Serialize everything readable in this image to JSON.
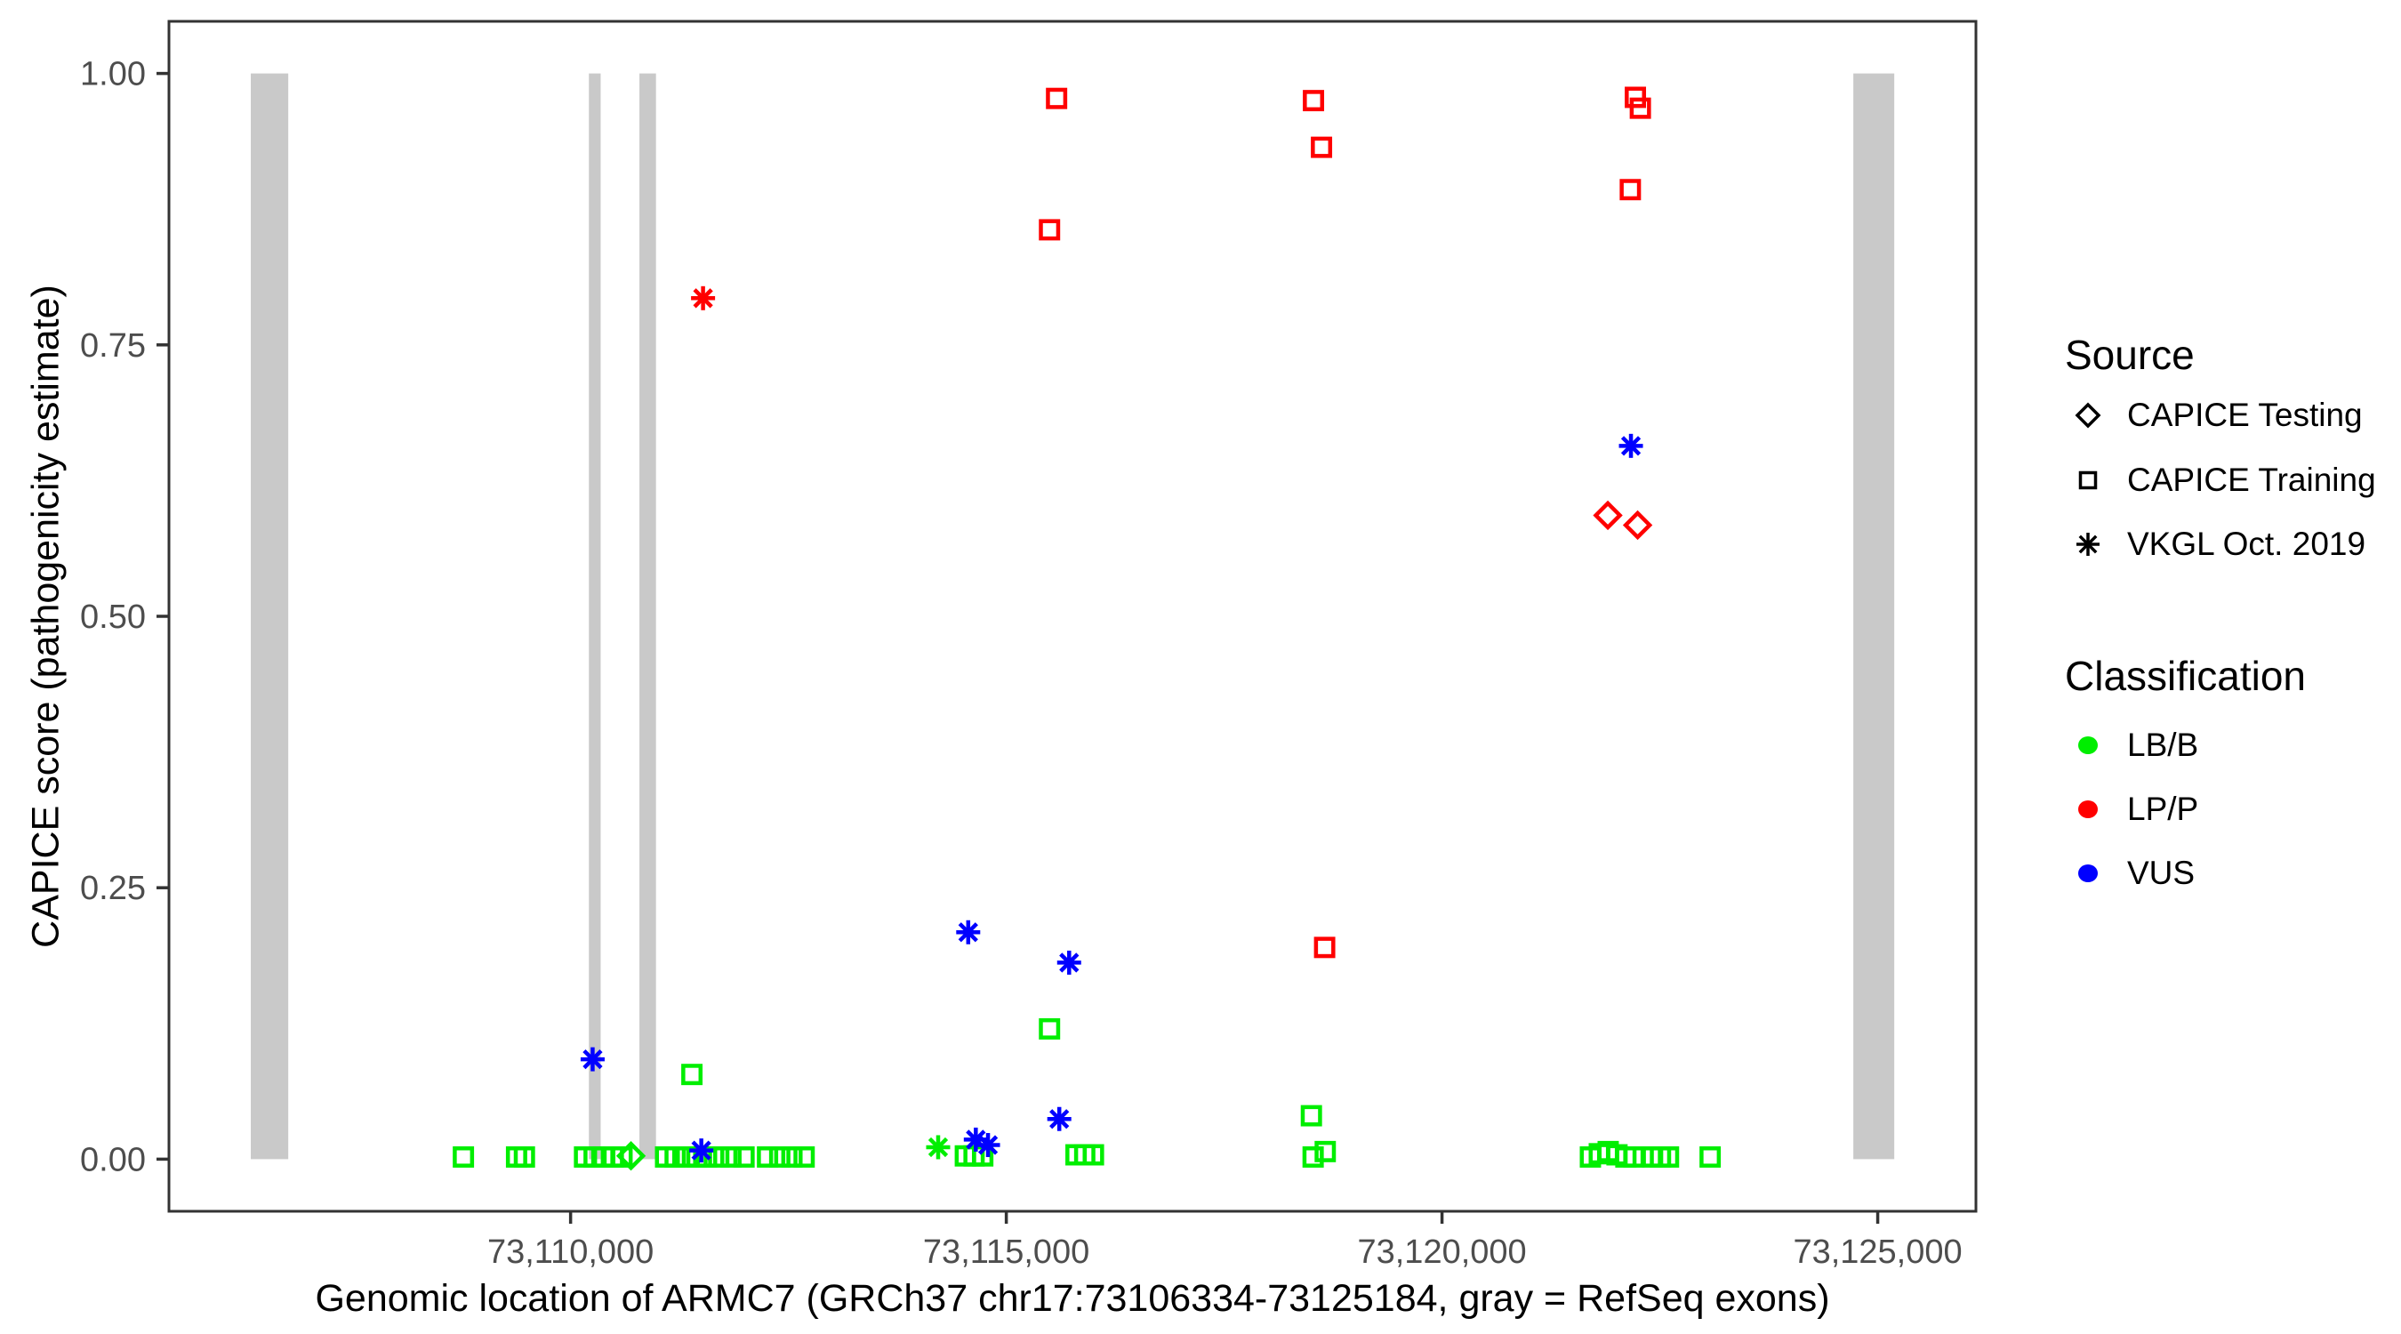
{
  "chart_data": {
    "type": "scatter",
    "xlabel": "Genomic location of ARMC7 (GRCh37 chr17:73106334-73125184, gray = RefSeq exons)",
    "ylabel": "CAPICE score (pathogenicity estimate)",
    "x_domain": [
      73105391,
      73126127
    ],
    "y_domain": [
      -0.048,
      1.048
    ],
    "grid": "off",
    "x_ticks": [
      {
        "value": 73110000,
        "label": "73,110,000"
      },
      {
        "value": 73115000,
        "label": "73,115,000"
      },
      {
        "value": 73120000,
        "label": "73,120,000"
      },
      {
        "value": 73125000,
        "label": "73,125,000"
      }
    ],
    "y_ticks": [
      {
        "value": 0.0,
        "label": "0.00"
      },
      {
        "value": 0.25,
        "label": "0.25"
      },
      {
        "value": 0.5,
        "label": "0.50"
      },
      {
        "value": 0.75,
        "label": "0.75"
      },
      {
        "value": 1.0,
        "label": "1.00"
      }
    ],
    "exons_note": "gray = RefSeq exons",
    "exons": [
      {
        "start": 73106330,
        "end": 73106760
      },
      {
        "start": 73110210,
        "end": 73110345
      },
      {
        "start": 73110790,
        "end": 73110980
      },
      {
        "start": 73124720,
        "end": 73125190
      }
    ],
    "colors": {
      "LB/B": "#00EE00",
      "LP/P": "#FF0000",
      "VUS": "#0000FF"
    },
    "series": [
      {
        "name": "CAPICE Testing",
        "shape": "diamond",
        "points": [
          [
            73121903,
            0.593,
            "LP/P"
          ],
          [
            73122245,
            0.584,
            "LP/P"
          ],
          [
            73110693,
            0.003,
            "LB/B"
          ]
        ]
      },
      {
        "name": "CAPICE Training",
        "shape": "square",
        "points": [
          [
            73115577,
            0.977,
            "LP/P"
          ],
          [
            73115496,
            0.856,
            "LP/P"
          ],
          [
            73118525,
            0.975,
            "LP/P"
          ],
          [
            73118617,
            0.932,
            "LP/P"
          ],
          [
            73118653,
            0.195,
            "LP/P"
          ],
          [
            73122219,
            0.978,
            "LP/P"
          ],
          [
            73122276,
            0.968,
            "LP/P"
          ],
          [
            73122161,
            0.893,
            "LP/P"
          ],
          [
            73108770,
            0.002,
            "LB/B"
          ],
          [
            73109380,
            0.002,
            "LB/B"
          ],
          [
            73109470,
            0.002,
            "LB/B"
          ],
          [
            73110160,
            0.002,
            "LB/B"
          ],
          [
            73110270,
            0.002,
            "LB/B"
          ],
          [
            73110380,
            0.002,
            "LB/B"
          ],
          [
            73110490,
            0.002,
            "LB/B"
          ],
          [
            73110590,
            0.002,
            "LB/B"
          ],
          [
            73111090,
            0.002,
            "LB/B"
          ],
          [
            73111200,
            0.002,
            "LB/B"
          ],
          [
            73111330,
            0.002,
            "LB/B"
          ],
          [
            73111450,
            0.002,
            "LB/B"
          ],
          [
            73111560,
            0.002,
            "LB/B"
          ],
          [
            73111700,
            0.002,
            "LB/B"
          ],
          [
            73111840,
            0.002,
            "LB/B"
          ],
          [
            73111990,
            0.002,
            "LB/B"
          ],
          [
            73112260,
            0.002,
            "LB/B"
          ],
          [
            73112400,
            0.002,
            "LB/B"
          ],
          [
            73112540,
            0.002,
            "LB/B"
          ],
          [
            73112680,
            0.002,
            "LB/B"
          ],
          [
            73111392,
            0.078,
            "LB/B"
          ],
          [
            73114530,
            0.003,
            "LB/B"
          ],
          [
            73114630,
            0.003,
            "LB/B"
          ],
          [
            73114730,
            0.003,
            "LB/B"
          ],
          [
            73115496,
            0.12,
            "LB/B"
          ],
          [
            73115800,
            0.004,
            "LB/B"
          ],
          [
            73115900,
            0.004,
            "LB/B"
          ],
          [
            73116000,
            0.004,
            "LB/B"
          ],
          [
            73118501,
            0.04,
            "LB/B"
          ],
          [
            73118521,
            0.002,
            "LB/B"
          ],
          [
            73118660,
            0.007,
            "LB/B"
          ],
          [
            73121703,
            0.002,
            "LB/B"
          ],
          [
            73121805,
            0.005,
            "LB/B"
          ],
          [
            73121907,
            0.007,
            "LB/B"
          ],
          [
            73122008,
            0.004,
            "LB/B"
          ],
          [
            73122110,
            0.002,
            "LB/B"
          ],
          [
            73122202,
            0.002,
            "LB/B"
          ],
          [
            73122416,
            0.002,
            "LB/B"
          ],
          [
            73122507,
            0.002,
            "LB/B"
          ],
          [
            73122599,
            0.002,
            "LB/B"
          ],
          [
            73123077,
            0.002,
            "LB/B"
          ]
        ]
      },
      {
        "name": "VKGL Oct. 2019",
        "shape": "asterisk",
        "points": [
          [
            73111520,
            0.793,
            "LP/P"
          ],
          [
            73122168,
            0.657,
            "VUS"
          ],
          [
            73114563,
            0.209,
            "VUS"
          ],
          [
            73115721,
            0.181,
            "VUS"
          ],
          [
            73110253,
            0.092,
            "VUS"
          ],
          [
            73115608,
            0.037,
            "VUS"
          ],
          [
            73114650,
            0.018,
            "VUS"
          ],
          [
            73114790,
            0.013,
            "VUS"
          ],
          [
            73111500,
            0.008,
            "VUS"
          ],
          [
            73114218,
            0.011,
            "LB/B"
          ]
        ]
      }
    ]
  },
  "legend": {
    "source_title": "Source",
    "source_items": [
      {
        "label": "CAPICE Testing",
        "shape": "diamond"
      },
      {
        "label": "CAPICE Training",
        "shape": "square"
      },
      {
        "label": "VKGL Oct. 2019",
        "shape": "asterisk"
      }
    ],
    "classification_title": "Classification",
    "classification_items": [
      {
        "label": "LB/B",
        "color": "#00EE00"
      },
      {
        "label": "LP/P",
        "color": "#FF0000"
      },
      {
        "label": "VUS",
        "color": "#0000FF"
      }
    ]
  },
  "style": {
    "exon_color": "#C9C9C9",
    "tick_text_color": "#4D4D4D",
    "border_color": "#333333"
  }
}
